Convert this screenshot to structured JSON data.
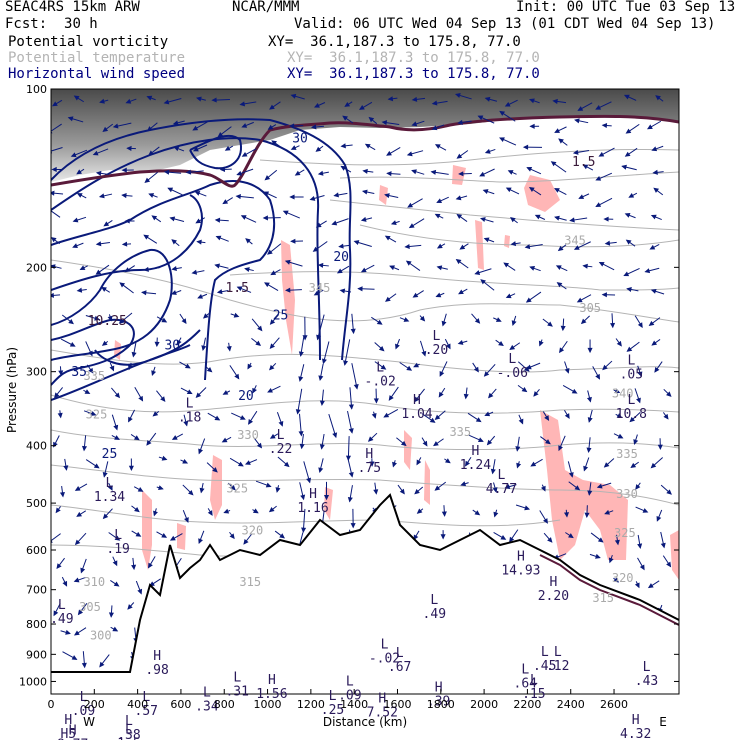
{
  "header": {
    "model": "SEAC4RS 15km ARW",
    "fcst_label": "Fcst:",
    "fcst_value": "30 h",
    "org": "NCAR/MMM",
    "init": "Init: 00 UTC Tue 03 Sep 13",
    "valid": "Valid: 06 UTC Wed 04 Sep 13 (01 CDT Wed 04 Sep 13)"
  },
  "legend": [
    {
      "label": "Potential vorticity",
      "xy": "XY=  36.1,187.3 to 175.8, 77.0",
      "color": "#000000"
    },
    {
      "label": "Potential temperature",
      "xy": "XY=  36.1,187.3 to 175.8, 77.0",
      "color": "#b4b4b4"
    },
    {
      "label": "Horizontal wind speed",
      "xy": "XY=  36.1,187.3 to 175.8, 77.0",
      "color": "#000080"
    }
  ],
  "colors": {
    "pv_fill": "#ffb6b6",
    "wind_contour": "#0a1a7a",
    "theta_contour": "#b4b4b4",
    "tropopause": "#5a1a3a",
    "terrain": "#000000",
    "stratosphere_shade": "#7a7a7a"
  },
  "chart_data": {
    "type": "cross-section",
    "xlabel": "Distance (km)",
    "ylabel": "Pressure (hPa)",
    "x_ticks": [
      "0",
      "200",
      "400",
      "600",
      "800",
      "1000",
      "1200",
      "1400",
      "1600",
      "1800",
      "2000",
      "2200",
      "2400",
      "2600"
    ],
    "y_ticks": [
      "100",
      "200",
      "300",
      "400",
      "500",
      "600",
      "700",
      "800",
      "900",
      "1000"
    ],
    "xlim": [
      0,
      2900
    ],
    "ylim": [
      100,
      1050
    ],
    "y_scale": "log",
    "end_labels": {
      "left": "W",
      "right": "E"
    },
    "theta_labels": [
      {
        "x": 1240,
        "y": 220,
        "text": "345"
      },
      {
        "x": 2420,
        "y": 183,
        "text": "345"
      },
      {
        "x": 2490,
        "y": 238,
        "text": "305"
      },
      {
        "x": 2640,
        "y": 332,
        "text": "340"
      },
      {
        "x": 1890,
        "y": 385,
        "text": "335"
      },
      {
        "x": 2660,
        "y": 420,
        "text": "335"
      },
      {
        "x": 910,
        "y": 390,
        "text": "330"
      },
      {
        "x": 2660,
        "y": 490,
        "text": "330"
      },
      {
        "x": 860,
        "y": 480,
        "text": "325"
      },
      {
        "x": 2650,
        "y": 570,
        "text": "325"
      },
      {
        "x": 930,
        "y": 565,
        "text": "320"
      },
      {
        "x": 2640,
        "y": 680,
        "text": "320"
      },
      {
        "x": 920,
        "y": 690,
        "text": "315"
      },
      {
        "x": 2550,
        "y": 735,
        "text": "315"
      },
      {
        "x": 200,
        "y": 690,
        "text": "310"
      },
      {
        "x": 180,
        "y": 760,
        "text": "305"
      },
      {
        "x": 230,
        "y": 850,
        "text": "300"
      },
      {
        "x": 210,
        "y": 360,
        "text": "325"
      },
      {
        "x": 200,
        "y": 310,
        "text": "335"
      }
    ],
    "wind_labels": [
      {
        "x": 1340,
        "y": 195,
        "text": "20"
      },
      {
        "x": 1060,
        "y": 245,
        "text": "25"
      },
      {
        "x": 560,
        "y": 275,
        "text": "30"
      },
      {
        "x": 130,
        "y": 305,
        "text": "35"
      },
      {
        "x": 900,
        "y": 335,
        "text": "20"
      },
      {
        "x": 270,
        "y": 420,
        "text": "25"
      },
      {
        "x": 1150,
        "y": 123,
        "text": "30"
      }
    ],
    "pv_labels": [
      {
        "x": 260,
        "y": 250,
        "text": "10.25"
      },
      {
        "x": 860,
        "y": 220,
        "text": "1.5"
      },
      {
        "x": 2460,
        "y": 135,
        "text": "1.5"
      }
    ],
    "extrema": [
      {
        "x": 640,
        "y": 345,
        "kind": "L",
        "value": ".18"
      },
      {
        "x": 1060,
        "y": 390,
        "kind": "L",
        "value": ".22"
      },
      {
        "x": 1520,
        "y": 300,
        "kind": "L",
        "value": "-.02"
      },
      {
        "x": 1780,
        "y": 265,
        "kind": "L",
        "value": ".20"
      },
      {
        "x": 2130,
        "y": 290,
        "kind": "L",
        "value": "-.06"
      },
      {
        "x": 2680,
        "y": 292,
        "kind": "L",
        "value": ".05"
      },
      {
        "x": 2680,
        "y": 340,
        "kind": "L",
        "value": "10.8"
      },
      {
        "x": 1690,
        "y": 340,
        "kind": "H",
        "value": "1.04"
      },
      {
        "x": 1470,
        "y": 420,
        "kind": "H",
        "value": ".75"
      },
      {
        "x": 1210,
        "y": 490,
        "kind": "H",
        "value": "1.16"
      },
      {
        "x": 1960,
        "y": 415,
        "kind": "H",
        "value": "1.24"
      },
      {
        "x": 2080,
        "y": 455,
        "kind": "L",
        "value": "4.77"
      },
      {
        "x": 270,
        "y": 470,
        "kind": "L",
        "value": "1.34"
      },
      {
        "x": 310,
        "y": 575,
        "kind": "L",
        "value": ".19"
      },
      {
        "x": 2170,
        "y": 625,
        "kind": "H",
        "value": "14.93"
      },
      {
        "x": 2320,
        "y": 690,
        "kind": "H",
        "value": "2.20"
      },
      {
        "x": 1770,
        "y": 740,
        "kind": "L",
        "value": ".49"
      },
      {
        "x": 50,
        "y": 755,
        "kind": "L",
        "value": ".49"
      },
      {
        "x": 1540,
        "y": 880,
        "kind": "L",
        "value": "-.02"
      },
      {
        "x": 1610,
        "y": 910,
        "kind": "L",
        "value": ".67"
      },
      {
        "x": 2280,
        "y": 905,
        "kind": "L",
        "value": ".45"
      },
      {
        "x": 2340,
        "y": 905,
        "kind": "L",
        "value": ".12"
      },
      {
        "x": 490,
        "y": 920,
        "kind": "H",
        "value": ".98"
      },
      {
        "x": 860,
        "y": 1000,
        "kind": "L",
        "value": ".31"
      },
      {
        "x": 1020,
        "y": 1010,
        "kind": "H",
        "value": "1.56"
      },
      {
        "x": 720,
        "y": 1060,
        "kind": "L",
        "value": ".34"
      },
      {
        "x": 1380,
        "y": 1015,
        "kind": "L",
        "value": ".09"
      },
      {
        "x": 1300,
        "y": 1075,
        "kind": "L",
        "value": ".25"
      },
      {
        "x": 2190,
        "y": 970,
        "kind": "L",
        "value": ".64"
      },
      {
        "x": 2230,
        "y": 1010,
        "kind": "L",
        "value": ".15"
      },
      {
        "x": 2750,
        "y": 960,
        "kind": "L",
        "value": ".43"
      },
      {
        "x": 1530,
        "y": 1085,
        "kind": "H",
        "value": "7.52"
      },
      {
        "x": 1790,
        "y": 1040,
        "kind": "H",
        "value": ".39"
      },
      {
        "x": 150,
        "y": 1080,
        "kind": "L",
        "value": ".09"
      },
      {
        "x": 440,
        "y": 1080,
        "kind": "L",
        "value": ".57"
      },
      {
        "x": 80,
        "y": 1180,
        "kind": "H",
        "value": "H5"
      },
      {
        "x": 360,
        "y": 1185,
        "kind": "L",
        "value": ".38"
      },
      {
        "x": 100,
        "y": 1230,
        "kind": "H",
        "value": "8.77"
      },
      {
        "x": 360,
        "y": 1225,
        "kind": "L",
        "value": "1.5"
      },
      {
        "x": 2700,
        "y": 1180,
        "kind": "H",
        "value": "4.32"
      }
    ]
  }
}
